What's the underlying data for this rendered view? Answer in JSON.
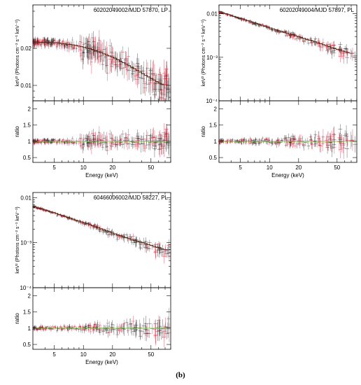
{
  "caption": "(b)",
  "colors": {
    "data_red": "#d3223a",
    "data_black": "#222222",
    "model": "#5a2a18",
    "ratio_line": "#6ccc3a"
  },
  "chart_data": [
    {
      "type": "scatter",
      "title": "60202049002/MJD 57870, LP",
      "ylabel": "keV² (Photons cm⁻² s⁻¹ keV⁻¹)",
      "y_scale": "log",
      "ylim": [
        0.0075,
        0.045
      ],
      "yticks": [
        {
          "v": 0.01,
          "label": "0.01"
        },
        {
          "v": 0.02,
          "label": "0.02"
        }
      ],
      "model": {
        "E": [
          3,
          5,
          8,
          12,
          20,
          30,
          45,
          60,
          70
        ],
        "y": [
          0.0225,
          0.0222,
          0.0212,
          0.0196,
          0.0168,
          0.0142,
          0.0118,
          0.0104,
          0.0098
        ]
      },
      "ratio": {
        "ylabel": "ratio",
        "ylim": [
          0.35,
          2.25
        ],
        "yticks": [
          0.5,
          1,
          1.5,
          2
        ],
        "reference": 1
      },
      "x": {
        "label": "Energy (keV)",
        "xlim": [
          3,
          80
        ],
        "xticks": [
          5,
          10,
          20,
          50
        ]
      }
    },
    {
      "type": "scatter",
      "title": "60202049004/MJD 57897, PL",
      "ylabel": "keV² (Photons cm⁻² s⁻¹ keV⁻¹)",
      "y_scale": "log",
      "ylim": [
        0.0001,
        0.016
      ],
      "yticks": [
        {
          "v": 0.0001,
          "label": "10⁻⁴"
        },
        {
          "v": 0.001,
          "label": "10⁻³"
        },
        {
          "v": 0.01,
          "label": "0.01"
        }
      ],
      "model": {
        "E": [
          3,
          5,
          8,
          12,
          20,
          30,
          45,
          70
        ],
        "y": [
          0.011,
          0.0077,
          0.0055,
          0.0041,
          0.0029,
          0.0022,
          0.0016,
          0.0012
        ]
      },
      "ratio": {
        "ylabel": "ratio",
        "ylim": [
          0.35,
          2.25
        ],
        "yticks": [
          0.5,
          1,
          1.5,
          2
        ],
        "reference": 1
      },
      "x": {
        "label": "Energy (keV)",
        "xlim": [
          3,
          80
        ],
        "xticks": [
          5,
          10,
          20,
          50
        ]
      }
    },
    {
      "type": "scatter",
      "title": "60466006002/MJD 58227, PL",
      "ylabel": "keV² (Photons cm⁻² s⁻¹ keV⁻¹)",
      "y_scale": "log",
      "ylim": [
        0.0001,
        0.013
      ],
      "yticks": [
        {
          "v": 0.0001,
          "label": "10⁻⁴"
        },
        {
          "v": 0.001,
          "label": "10⁻³"
        },
        {
          "v": 0.01,
          "label": "0.01"
        }
      ],
      "model": {
        "E": [
          3,
          5,
          8,
          12,
          20,
          30,
          45,
          70
        ],
        "y": [
          0.0064,
          0.0045,
          0.0032,
          0.0024,
          0.0016,
          0.0012,
          0.00092,
          0.00068
        ]
      },
      "ratio": {
        "ylabel": "ratio",
        "ylim": [
          0.35,
          2.25
        ],
        "yticks": [
          0.5,
          1,
          1.5,
          2
        ],
        "reference": 1
      },
      "x": {
        "label": "Energy (keV)",
        "xlim": [
          3,
          80
        ],
        "xticks": [
          5,
          10,
          20,
          50
        ]
      }
    }
  ]
}
